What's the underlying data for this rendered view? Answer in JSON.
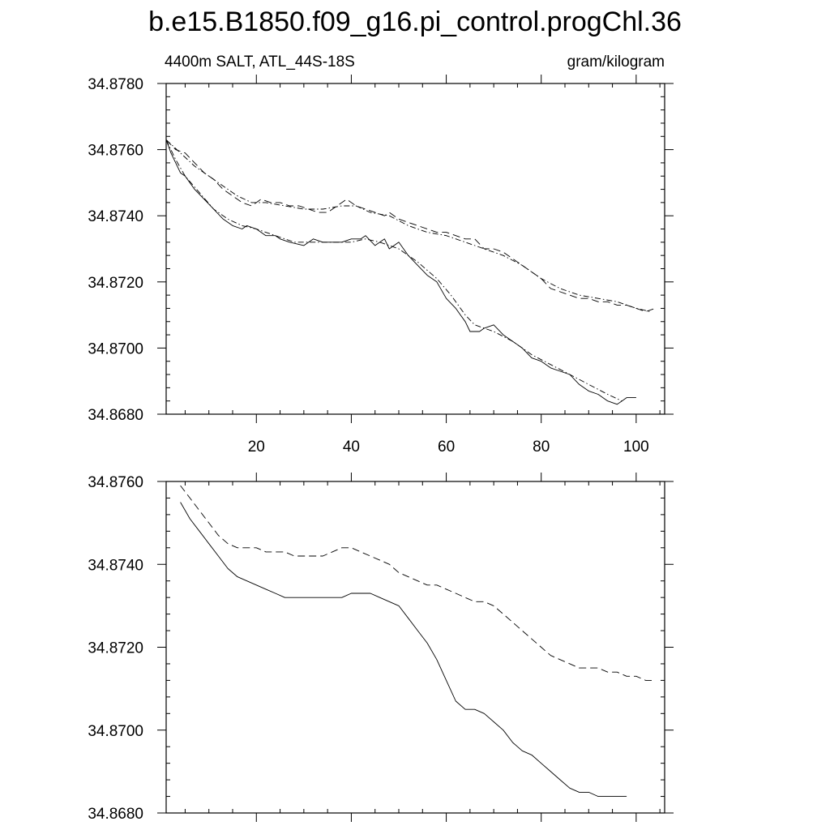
{
  "title": "b.e15.B1850.f09_g16.pi_control.progChl.36",
  "chart_data": [
    {
      "type": "line",
      "left_label": "4400m SALT, ATL_44S-18S",
      "right_label": "gram/kilogram",
      "xlim": [
        1,
        106
      ],
      "ylim": [
        34.868,
        34.878
      ],
      "xticks": [
        20,
        40,
        60,
        80,
        100
      ],
      "xtick_labels": [
        "20",
        "40",
        "60",
        "80",
        "100"
      ],
      "yticks": [
        34.868,
        34.87,
        34.872,
        34.874,
        34.876,
        34.878
      ],
      "ytick_labels": [
        "34.8680",
        "34.8700",
        "34.8720",
        "34.8740",
        "34.8760",
        "34.8780"
      ],
      "series": [
        {
          "name": "solid",
          "style": "solid",
          "x": [
            1,
            2,
            4,
            5,
            7,
            9,
            11,
            13,
            15,
            17,
            18,
            20,
            22,
            24,
            25,
            27,
            30,
            32,
            34,
            36,
            38,
            40,
            42,
            43,
            45,
            47,
            48,
            50,
            52,
            54,
            56,
            58,
            60,
            62,
            63,
            64,
            65,
            67,
            68,
            70,
            72,
            74,
            76,
            78,
            80,
            82,
            84,
            86,
            88,
            90,
            92,
            94,
            96,
            97,
            98,
            100
          ],
          "y": [
            34.8763,
            34.8759,
            34.8753,
            34.8752,
            34.8748,
            34.8745,
            34.8742,
            34.8739,
            34.8737,
            34.8736,
            34.8737,
            34.8736,
            34.8734,
            34.8734,
            34.8733,
            34.8732,
            34.8731,
            34.8733,
            34.8732,
            34.8732,
            34.8732,
            34.8733,
            34.8733,
            34.8734,
            34.8731,
            34.8733,
            34.873,
            34.8732,
            34.8728,
            34.8725,
            34.8722,
            34.872,
            34.8715,
            34.8712,
            34.871,
            34.8708,
            34.8705,
            34.8705,
            34.8706,
            34.8707,
            34.8704,
            34.8702,
            34.87,
            34.8697,
            34.8696,
            34.8694,
            34.8693,
            34.8692,
            34.8689,
            34.8687,
            34.8686,
            34.8684,
            34.8683,
            34.8684,
            34.8685,
            34.8685
          ]
        },
        {
          "name": "solid-smooth",
          "style": "dashdot",
          "x": [
            1,
            3,
            5,
            8,
            11,
            14,
            17,
            20,
            24,
            28,
            32,
            36,
            40,
            43,
            46,
            50,
            54,
            58,
            61,
            64,
            66,
            68,
            70,
            74,
            78,
            82,
            86,
            90,
            94,
            97
          ],
          "y": [
            34.8763,
            34.8757,
            34.8752,
            34.8747,
            34.8742,
            34.8739,
            34.8737,
            34.8736,
            34.8734,
            34.8732,
            34.8732,
            34.8732,
            34.8732,
            34.8733,
            34.8732,
            34.873,
            34.8726,
            34.8721,
            34.8716,
            34.871,
            34.8707,
            34.8706,
            34.8705,
            34.8702,
            34.8698,
            34.8695,
            34.8692,
            34.8689,
            34.8686,
            34.8684
          ]
        },
        {
          "name": "dashed",
          "style": "dashed",
          "x": [
            1,
            3,
            5,
            7,
            9,
            11,
            13,
            15,
            17,
            19,
            21,
            23,
            25,
            27,
            29,
            31,
            33,
            35,
            37,
            39,
            41,
            43,
            45,
            47,
            48,
            50,
            52,
            54,
            56,
            58,
            60,
            62,
            64,
            66,
            68,
            70,
            72,
            74,
            76,
            78,
            80,
            82,
            84,
            86,
            88,
            90,
            92,
            94,
            96,
            98,
            100,
            102,
            104
          ],
          "y": [
            34.8763,
            34.876,
            34.8759,
            34.8756,
            34.8753,
            34.8751,
            34.8748,
            34.8746,
            34.8744,
            34.8743,
            34.8745,
            34.8744,
            34.8744,
            34.8743,
            34.8743,
            34.8742,
            34.8741,
            34.8741,
            34.8743,
            34.8745,
            34.8743,
            34.8742,
            34.8741,
            34.874,
            34.8741,
            34.8739,
            34.8738,
            34.8737,
            34.8736,
            34.8735,
            34.8735,
            34.8734,
            34.8733,
            34.8733,
            34.873,
            34.873,
            34.8729,
            34.8727,
            34.8725,
            34.8723,
            34.8721,
            34.8718,
            34.8717,
            34.8716,
            34.8715,
            34.8715,
            34.8714,
            34.8714,
            34.8713,
            34.8713,
            34.8712,
            34.8711,
            34.8712
          ]
        },
        {
          "name": "dashed-smooth",
          "style": "dashdot",
          "x": [
            1,
            4,
            7,
            10,
            13,
            16,
            19,
            22,
            26,
            30,
            34,
            38,
            41,
            44,
            48,
            52,
            56,
            60,
            64,
            68,
            72,
            76,
            80,
            84,
            88,
            92,
            96,
            100,
            103
          ],
          "y": [
            34.8763,
            34.8759,
            34.8755,
            34.8752,
            34.8749,
            34.8746,
            34.8744,
            34.8744,
            34.8743,
            34.8742,
            34.8742,
            34.8743,
            34.8743,
            34.8741,
            34.874,
            34.8737,
            34.8735,
            34.8734,
            34.8732,
            34.873,
            34.8728,
            34.8725,
            34.8721,
            34.8718,
            34.8716,
            34.8715,
            34.8714,
            34.8712,
            34.8711
          ]
        }
      ]
    },
    {
      "type": "line",
      "xlim": [
        1,
        106
      ],
      "ylim": [
        34.868,
        34.876
      ],
      "xticks": [
        20,
        40,
        60,
        80,
        100
      ],
      "xtick_labels": [],
      "yticks": [
        34.868,
        34.87,
        34.872,
        34.874,
        34.876
      ],
      "ytick_labels": [
        "34.8680",
        "34.8700",
        "34.8720",
        "34.8740",
        "34.8760"
      ],
      "series": [
        {
          "name": "solid",
          "style": "solid",
          "x": [
            4,
            6,
            8,
            10,
            12,
            14,
            16,
            18,
            20,
            22,
            24,
            26,
            28,
            30,
            32,
            34,
            36,
            38,
            40,
            42,
            44,
            46,
            48,
            50,
            52,
            54,
            56,
            58,
            60,
            62,
            64,
            66,
            68,
            70,
            72,
            74,
            76,
            78,
            80,
            82,
            84,
            86,
            88,
            90,
            92,
            94,
            96,
            98
          ],
          "y": [
            34.8755,
            34.8751,
            34.8748,
            34.8745,
            34.8742,
            34.8739,
            34.8737,
            34.8736,
            34.8735,
            34.8734,
            34.8733,
            34.8732,
            34.8732,
            34.8732,
            34.8732,
            34.8732,
            34.8732,
            34.8732,
            34.8733,
            34.8733,
            34.8733,
            34.8732,
            34.8731,
            34.873,
            34.8727,
            34.8724,
            34.8721,
            34.8717,
            34.8712,
            34.8707,
            34.8705,
            34.8705,
            34.8704,
            34.8702,
            34.87,
            34.8697,
            34.8695,
            34.8694,
            34.8692,
            34.869,
            34.8688,
            34.8686,
            34.8685,
            34.8685,
            34.8684,
            34.8684,
            34.8684,
            34.8684
          ]
        },
        {
          "name": "dashed",
          "style": "dashed",
          "x": [
            4,
            6,
            8,
            10,
            12,
            14,
            16,
            18,
            20,
            22,
            24,
            26,
            28,
            30,
            32,
            34,
            36,
            38,
            40,
            42,
            44,
            46,
            48,
            50,
            52,
            54,
            56,
            58,
            60,
            62,
            64,
            66,
            68,
            70,
            72,
            74,
            76,
            78,
            80,
            82,
            84,
            86,
            88,
            90,
            92,
            94,
            96,
            98,
            100,
            102,
            104
          ],
          "y": [
            34.8759,
            34.8756,
            34.8753,
            34.875,
            34.8747,
            34.8745,
            34.8744,
            34.8744,
            34.8744,
            34.8743,
            34.8743,
            34.8743,
            34.8742,
            34.8742,
            34.8742,
            34.8742,
            34.8743,
            34.8744,
            34.8744,
            34.8743,
            34.8742,
            34.8741,
            34.874,
            34.8738,
            34.8737,
            34.8736,
            34.8735,
            34.8735,
            34.8734,
            34.8733,
            34.8732,
            34.8731,
            34.8731,
            34.873,
            34.8728,
            34.8726,
            34.8724,
            34.8722,
            34.872,
            34.8718,
            34.8717,
            34.8716,
            34.8715,
            34.8715,
            34.8715,
            34.8714,
            34.8714,
            34.8713,
            34.8713,
            34.8712,
            34.8712
          ]
        }
      ]
    }
  ]
}
